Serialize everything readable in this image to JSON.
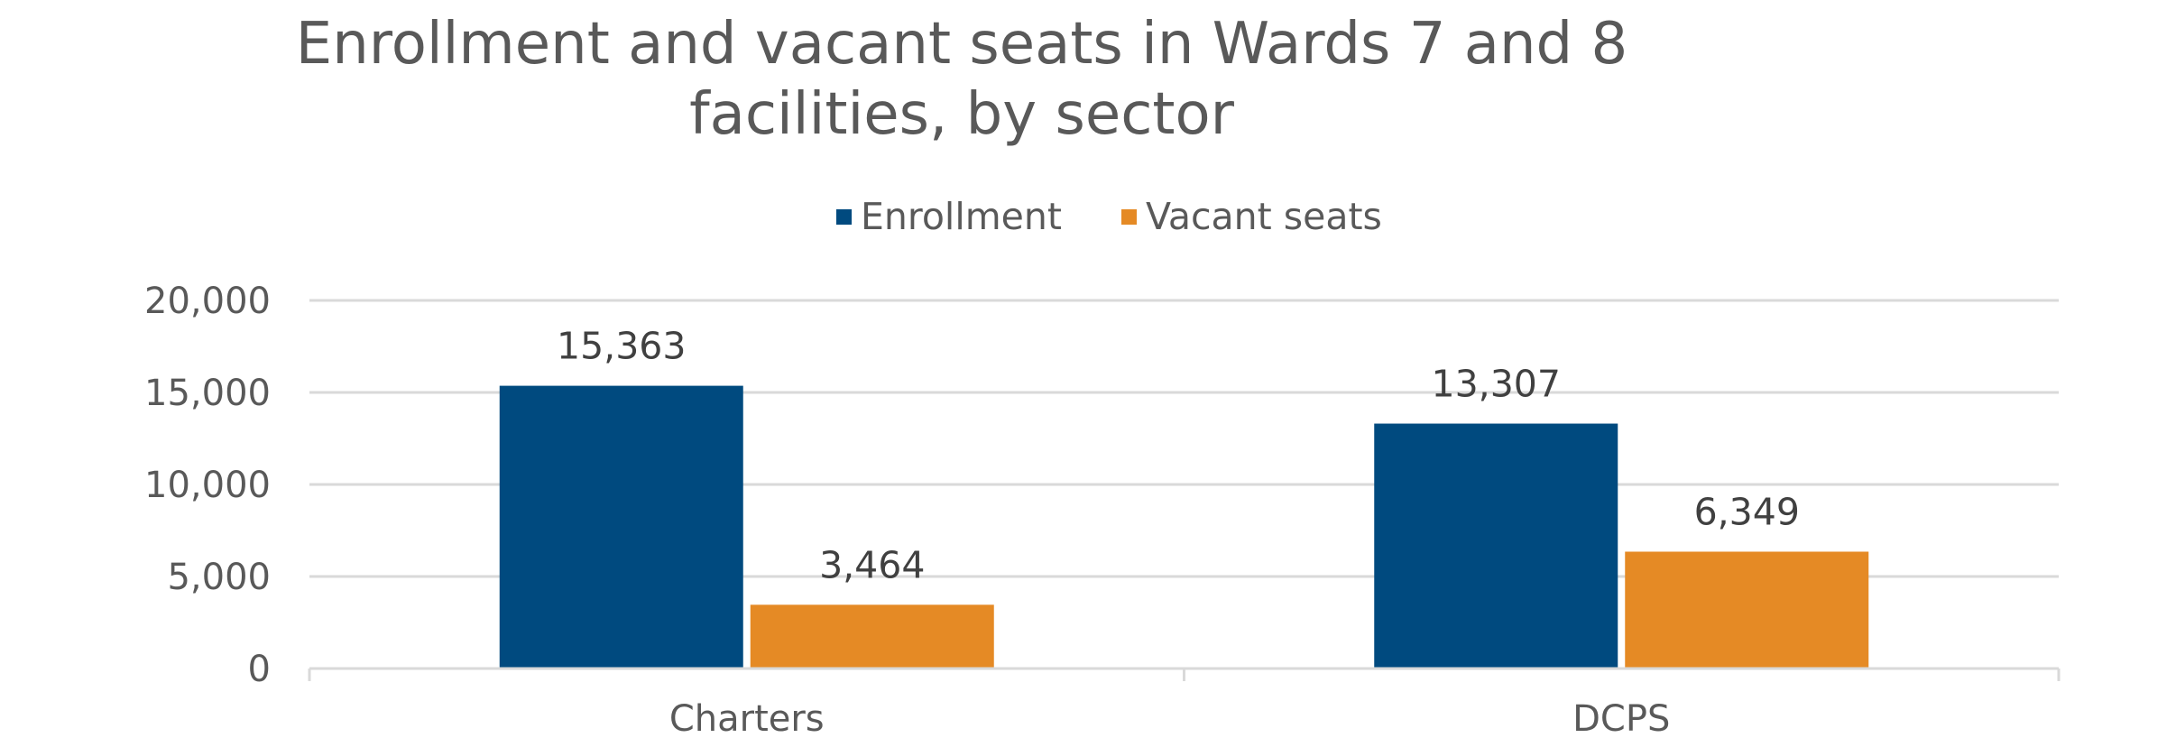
{
  "chart_data": {
    "type": "bar",
    "title": "Enrollment and vacant seats in Wards 7 and 8 facilities, by sector",
    "title_lines": [
      "Enrollment and vacant seats in Wards 7 and 8",
      "facilities, by sector"
    ],
    "xlabel": "",
    "ylabel": "",
    "categories": [
      "Charters",
      "DCPS"
    ],
    "series": [
      {
        "name": "Enrollment",
        "color": "#004A7F",
        "values": [
          15363,
          13307
        ],
        "labels": [
          "15,363",
          "13,307"
        ]
      },
      {
        "name": "Vacant seats",
        "color": "#E58A25",
        "values": [
          3464,
          6349
        ],
        "labels": [
          "3,464",
          "6,349"
        ]
      }
    ],
    "ylim": [
      0,
      20000
    ],
    "yticks": [
      0,
      5000,
      10000,
      15000,
      20000
    ],
    "ytick_labels": [
      "0",
      "5,000",
      "10,000",
      "15,000",
      "20,000"
    ],
    "grid": true,
    "legend_position": "top-center"
  }
}
